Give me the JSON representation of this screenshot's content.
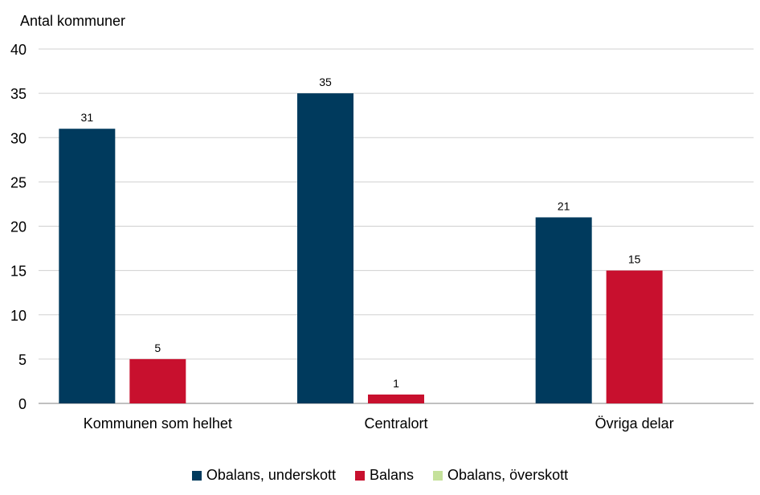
{
  "chart_data": {
    "type": "bar",
    "ylabel": "Antal kommuner",
    "categories": [
      "Kommunen som helhet",
      "Centralort",
      "Övriga delar"
    ],
    "ylim": [
      0,
      40
    ],
    "yticks": [
      0,
      5,
      10,
      15,
      20,
      25,
      30,
      35,
      40
    ],
    "grid": true,
    "legend_position": "bottom",
    "series": [
      {
        "name": "Obalans, underskott",
        "color": "#003a5d",
        "values": [
          31,
          35,
          21
        ]
      },
      {
        "name": "Balans",
        "color": "#c8102e",
        "values": [
          5,
          1,
          15
        ]
      },
      {
        "name": "Obalans, överskott",
        "color": "#c5e19b",
        "values": [
          0,
          0,
          0
        ]
      }
    ]
  }
}
